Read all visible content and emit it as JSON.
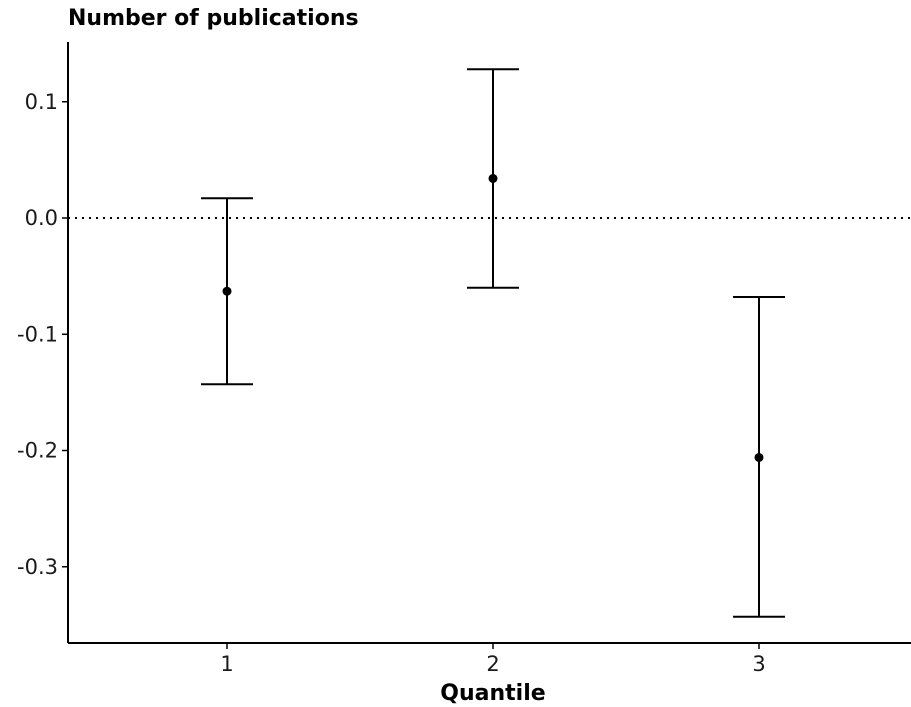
{
  "chart_data": {
    "type": "errorbar",
    "title": "Number of publications",
    "xlabel": "Quantile",
    "ylabel": "",
    "categories": [
      "1",
      "2",
      "3"
    ],
    "y_ticks": [
      "0.1",
      "0.0",
      "-0.1",
      "-0.2",
      "-0.3"
    ],
    "y_tick_values": [
      0.1,
      0.0,
      -0.1,
      -0.2,
      -0.3
    ],
    "points": [
      {
        "x": "1",
        "estimate": -0.063,
        "lower": -0.143,
        "upper": 0.017
      },
      {
        "x": "2",
        "estimate": 0.034,
        "lower": -0.06,
        "upper": 0.128
      },
      {
        "x": "3",
        "estimate": -0.206,
        "lower": -0.343,
        "upper": -0.068
      }
    ],
    "reference_line": 0.0,
    "ylim": [
      -0.365,
      0.15
    ],
    "grid": false
  }
}
